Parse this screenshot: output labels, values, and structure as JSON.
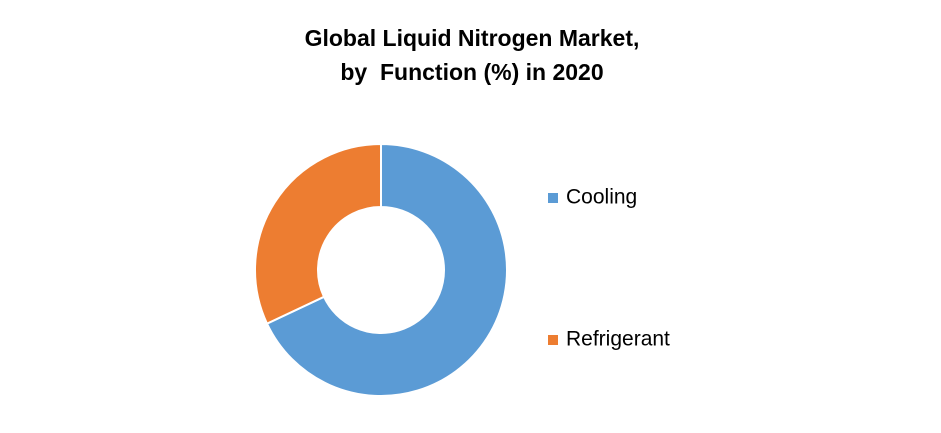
{
  "chart_data": {
    "type": "donut",
    "title": [
      "Global Liquid Nitrogen Market,",
      "by  Function (%) in 2020"
    ],
    "categories": [
      "Cooling",
      "Refrigerant"
    ],
    "values": [
      68,
      32
    ],
    "colors": [
      "#5b9bd5",
      "#ed7d31"
    ],
    "legend": "right"
  }
}
